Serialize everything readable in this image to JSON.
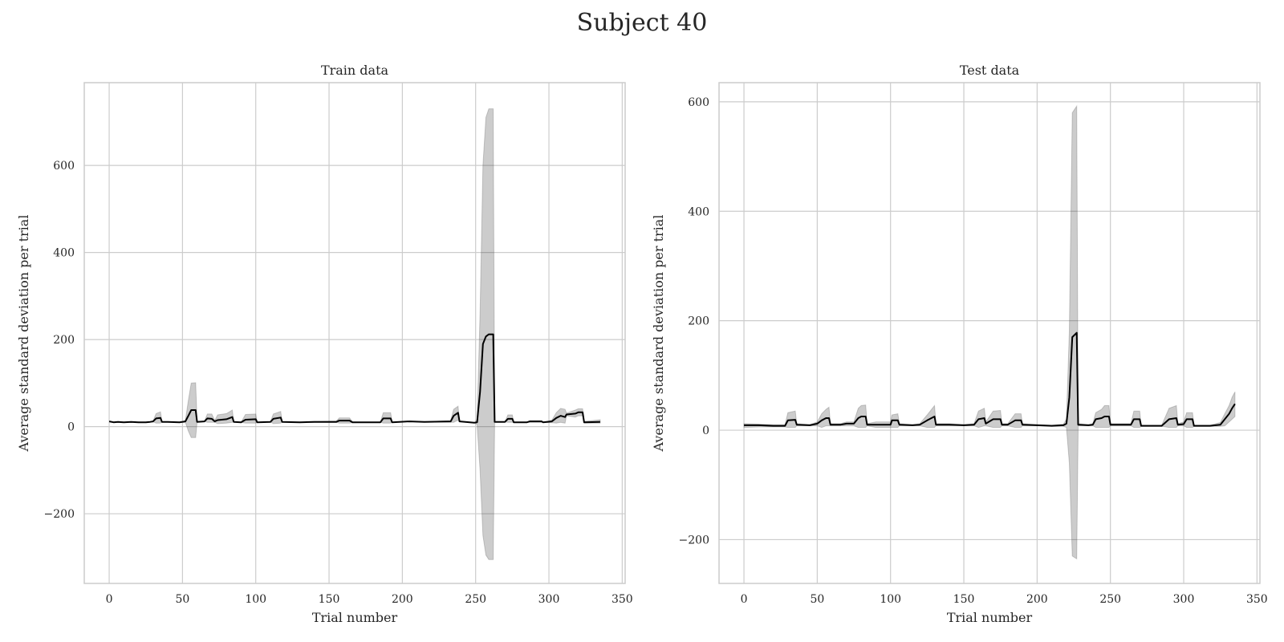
{
  "figure": {
    "suptitle": "Subject 40"
  },
  "colors": {
    "line": "#000000",
    "band": "#000000",
    "grid": "#cccccc",
    "frame": "#cccccc"
  },
  "chart_data": [
    {
      "type": "line",
      "title": "Train data",
      "xlabel": "Trial number",
      "ylabel": "Average standard deviation per trial",
      "xlim": [
        -17,
        352
      ],
      "ylim": [
        -360,
        790
      ],
      "xticks": [
        0,
        50,
        100,
        150,
        200,
        250,
        300,
        350
      ],
      "yticks": [
        -200,
        0,
        200,
        400,
        600
      ],
      "xtick_labels": [
        "0",
        "50",
        "100",
        "150",
        "200",
        "250",
        "300",
        "350"
      ],
      "ytick_labels": [
        "−200",
        "0",
        "200",
        "400",
        "600"
      ],
      "grid": true,
      "series": [
        {
          "style": "mean line with shaded std band",
          "points": [
            [
              0,
              12,
              12,
              12
            ],
            [
              3,
              10,
              10,
              10
            ],
            [
              6,
              11,
              11,
              11
            ],
            [
              10,
              10,
              10,
              10
            ],
            [
              15,
              11,
              11,
              11
            ],
            [
              20,
              10,
              10,
              10
            ],
            [
              25,
              10,
              10,
              10
            ],
            [
              28,
              11,
              11,
              11
            ],
            [
              30,
              12,
              11,
              13
            ],
            [
              32,
              19,
              8,
              30
            ],
            [
              35,
              20,
              8,
              34
            ],
            [
              36,
              11,
              11,
              11
            ],
            [
              40,
              11,
              11,
              11
            ],
            [
              48,
              10,
              10,
              10
            ],
            [
              52,
              12,
              10,
              14
            ],
            [
              54,
              25,
              -10,
              60
            ],
            [
              56,
              38,
              -25,
              100
            ],
            [
              59,
              38,
              -25,
              101
            ],
            [
              60,
              11,
              11,
              11
            ],
            [
              65,
              12,
              12,
              12
            ],
            [
              67,
              19,
              10,
              29
            ],
            [
              70,
              18,
              10,
              29
            ],
            [
              72,
              12,
              10,
              14
            ],
            [
              74,
              15,
              7,
              27
            ],
            [
              80,
              17,
              8,
              30
            ],
            [
              84,
              22,
              10,
              38
            ],
            [
              85,
              11,
              11,
              11
            ],
            [
              90,
              10,
              10,
              10
            ],
            [
              93,
              16,
              8,
              28
            ],
            [
              100,
              17,
              8,
              29
            ],
            [
              101,
              10,
              10,
              10
            ],
            [
              110,
              11,
              11,
              11
            ],
            [
              112,
              18,
              7,
              29
            ],
            [
              117,
              21,
              8,
              35
            ],
            [
              118,
              11,
              11,
              11
            ],
            [
              130,
              10,
              10,
              10
            ],
            [
              140,
              11,
              10,
              12
            ],
            [
              155,
              11,
              10,
              13
            ],
            [
              157,
              14,
              8,
              20
            ],
            [
              164,
              14,
              8,
              20
            ],
            [
              166,
              10,
              9,
              11
            ],
            [
              175,
              10,
              10,
              10
            ],
            [
              185,
              10,
              10,
              10
            ],
            [
              187,
              19,
              8,
              32
            ],
            [
              192,
              19,
              8,
              32
            ],
            [
              193,
              10,
              10,
              10
            ],
            [
              205,
              12,
              12,
              12
            ],
            [
              215,
              11,
              11,
              11
            ],
            [
              233,
              12,
              10,
              14
            ],
            [
              235,
              25,
              10,
              40
            ],
            [
              238,
              32,
              15,
              47
            ],
            [
              239,
              12,
              12,
              12
            ],
            [
              246,
              10,
              10,
              10
            ],
            [
              249,
              9,
              9,
              9
            ],
            [
              251,
              10,
              5,
              15
            ],
            [
              253,
              80,
              -100,
              260
            ],
            [
              255,
              190,
              -250,
              600
            ],
            [
              257,
              207,
              -295,
              710
            ],
            [
              259,
              212,
              -305,
              730
            ],
            [
              262,
              212,
              -305,
              730
            ],
            [
              263,
              11,
              11,
              11
            ],
            [
              270,
              11,
              11,
              11
            ],
            [
              272,
              18,
              10,
              27
            ],
            [
              275,
              18,
              10,
              27
            ],
            [
              276,
              10,
              10,
              10
            ],
            [
              285,
              10,
              10,
              10
            ],
            [
              287,
              12,
              10,
              14
            ],
            [
              295,
              12,
              10,
              14
            ],
            [
              296,
              10,
              10,
              10
            ],
            [
              302,
              12,
              9,
              15
            ],
            [
              305,
              20,
              8,
              32
            ],
            [
              308,
              25,
              10,
              42
            ],
            [
              311,
              22,
              8,
              40
            ],
            [
              312,
              28,
              25,
              31
            ],
            [
              318,
              30,
              22,
              38
            ],
            [
              320,
              33,
              25,
              41
            ],
            [
              323,
              33,
              25,
              41
            ],
            [
              324,
              10,
              8,
              12
            ],
            [
              335,
              11,
              8,
              16
            ]
          ]
        }
      ]
    },
    {
      "type": "line",
      "title": "Test data",
      "xlabel": "Trial number",
      "ylabel": "Average standard deviation per trial",
      "xlim": [
        -17,
        352
      ],
      "ylim": [
        -280,
        635
      ],
      "xticks": [
        0,
        50,
        100,
        150,
        200,
        250,
        300,
        350
      ],
      "yticks": [
        -200,
        0,
        200,
        400,
        600
      ],
      "xtick_labels": [
        "0",
        "50",
        "100",
        "150",
        "200",
        "250",
        "300",
        "350"
      ],
      "ytick_labels": [
        "−200",
        "0",
        "200",
        "400",
        "600"
      ],
      "grid": true,
      "series": [
        {
          "style": "mean line with shaded std band",
          "points": [
            [
              0,
              9,
              5,
              12
            ],
            [
              10,
              9,
              6,
              11
            ],
            [
              20,
              8,
              6,
              10
            ],
            [
              28,
              8,
              6,
              10
            ],
            [
              30,
              18,
              5,
              32
            ],
            [
              35,
              19,
              5,
              35
            ],
            [
              36,
              10,
              8,
              12
            ],
            [
              45,
              9,
              8,
              10
            ],
            [
              50,
              12,
              8,
              15
            ],
            [
              53,
              18,
              5,
              30
            ],
            [
              56,
              22,
              8,
              38
            ],
            [
              58,
              22,
              8,
              42
            ],
            [
              59,
              10,
              8,
              12
            ],
            [
              66,
              10,
              8,
              12
            ],
            [
              70,
              12,
              8,
              15
            ],
            [
              75,
              12,
              8,
              15
            ],
            [
              78,
              22,
              5,
              40
            ],
            [
              80,
              25,
              5,
              45
            ],
            [
              83,
              25,
              5,
              46
            ],
            [
              84,
              10,
              8,
              12
            ],
            [
              90,
              10,
              5,
              15
            ],
            [
              100,
              10,
              5,
              15
            ],
            [
              101,
              18,
              5,
              28
            ],
            [
              105,
              18,
              5,
              30
            ],
            [
              106,
              10,
              8,
              12
            ],
            [
              115,
              9,
              8,
              10
            ],
            [
              120,
              10,
              8,
              12
            ],
            [
              125,
              18,
              5,
              28
            ],
            [
              130,
              25,
              5,
              45
            ],
            [
              131,
              10,
              8,
              12
            ],
            [
              140,
              10,
              8,
              12
            ],
            [
              150,
              9,
              8,
              10
            ],
            [
              157,
              10,
              8,
              12
            ],
            [
              160,
              20,
              5,
              35
            ],
            [
              164,
              22,
              8,
              40
            ],
            [
              165,
              12,
              8,
              15
            ],
            [
              170,
              20,
              5,
              35
            ],
            [
              175,
              20,
              5,
              36
            ],
            [
              176,
              10,
              8,
              12
            ],
            [
              180,
              10,
              8,
              12
            ],
            [
              185,
              18,
              5,
              30
            ],
            [
              189,
              18,
              5,
              30
            ],
            [
              190,
              10,
              8,
              12
            ],
            [
              200,
              9,
              8,
              10
            ],
            [
              210,
              8,
              7,
              9
            ],
            [
              218,
              9,
              7,
              11
            ],
            [
              220,
              12,
              5,
              20
            ],
            [
              222,
              60,
              -60,
              180
            ],
            [
              224,
              170,
              -230,
              580
            ],
            [
              227,
              178,
              -235,
              592
            ],
            [
              228,
              10,
              8,
              12
            ],
            [
              235,
              9,
              8,
              10
            ],
            [
              238,
              10,
              8,
              12
            ],
            [
              240,
              20,
              5,
              32
            ],
            [
              244,
              22,
              5,
              38
            ],
            [
              246,
              25,
              5,
              45
            ],
            [
              249,
              25,
              5,
              45
            ],
            [
              250,
              10,
              8,
              12
            ],
            [
              260,
              10,
              8,
              12
            ],
            [
              264,
              10,
              8,
              12
            ],
            [
              266,
              20,
              5,
              35
            ],
            [
              270,
              20,
              5,
              35
            ],
            [
              271,
              8,
              7,
              9
            ],
            [
              285,
              8,
              7,
              9
            ],
            [
              290,
              20,
              5,
              40
            ],
            [
              295,
              22,
              5,
              45
            ],
            [
              296,
              10,
              8,
              12
            ],
            [
              300,
              11,
              8,
              15
            ],
            [
              302,
              20,
              5,
              32
            ],
            [
              306,
              20,
              5,
              32
            ],
            [
              307,
              8,
              7,
              9
            ],
            [
              318,
              8,
              7,
              9
            ],
            [
              325,
              10,
              7,
              14
            ],
            [
              328,
              20,
              8,
              30
            ],
            [
              331,
              30,
              15,
              45
            ],
            [
              333,
              40,
              20,
              60
            ],
            [
              335,
              48,
              25,
              70
            ]
          ]
        }
      ]
    }
  ]
}
